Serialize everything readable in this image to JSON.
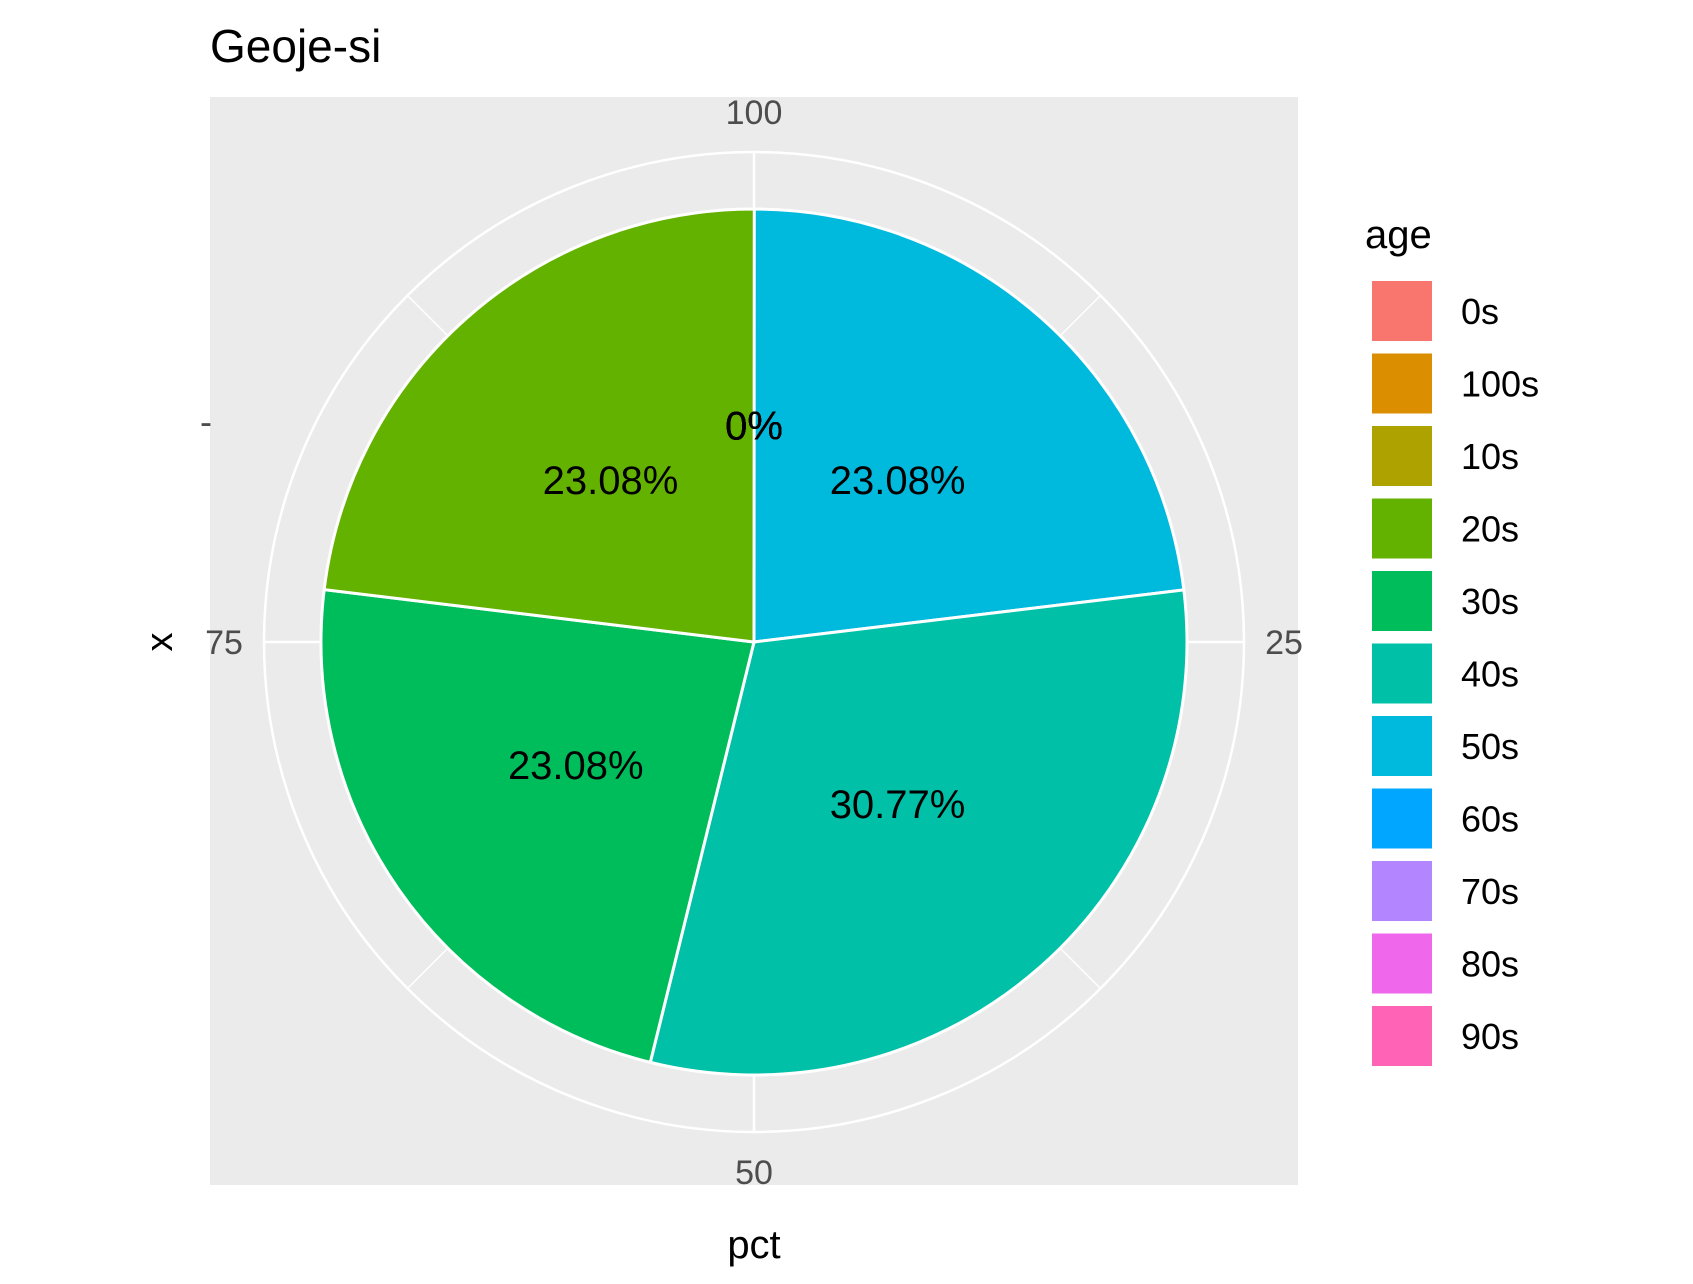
{
  "chart_data": {
    "type": "pie",
    "title": "Geoje-si",
    "xlabel": "pct",
    "ylabel": "x",
    "y_tick_label": "-",
    "theta_ticks": [
      "25",
      "50",
      "75",
      "100"
    ],
    "theta_range": [
      0,
      100
    ],
    "grid": true,
    "legend_position": "right",
    "legend_title": "age",
    "legend": [
      {
        "label": "0s",
        "color": "#F8766D"
      },
      {
        "label": "100s",
        "color": "#DB8E00"
      },
      {
        "label": "10s",
        "color": "#AEA200"
      },
      {
        "label": "20s",
        "color": "#64B200"
      },
      {
        "label": "30s",
        "color": "#00BD5C"
      },
      {
        "label": "40s",
        "color": "#00C1A7"
      },
      {
        "label": "50s",
        "color": "#00BADE"
      },
      {
        "label": "60s",
        "color": "#00A6FF"
      },
      {
        "label": "70s",
        "color": "#B385FF"
      },
      {
        "label": "80s",
        "color": "#EF67EB"
      },
      {
        "label": "90s",
        "color": "#FF63B6"
      }
    ],
    "slices": [
      {
        "category": "50s",
        "value": 23.08,
        "label": "23.08%",
        "color": "#00BADE"
      },
      {
        "category": "40s",
        "value": 30.77,
        "label": "30.77%",
        "color": "#00C1A7"
      },
      {
        "category": "30s",
        "value": 23.08,
        "label": "23.08%",
        "color": "#00BD5C"
      },
      {
        "category": "20s",
        "value": 23.08,
        "label": "23.08%",
        "color": "#64B200"
      }
    ],
    "zero_labels": [
      "0%",
      "0%",
      "0%",
      "0%",
      "0%",
      "0%",
      "0%"
    ]
  }
}
